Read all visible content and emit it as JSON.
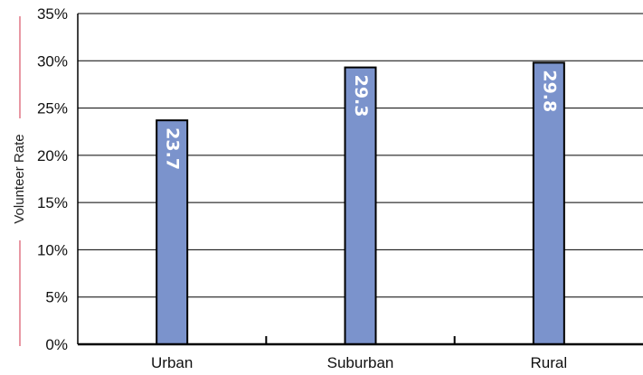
{
  "chart_data": {
    "type": "bar",
    "categories": [
      "Urban",
      "Suburban",
      "Rural"
    ],
    "values": [
      23.7,
      29.3,
      29.8
    ],
    "data_labels": [
      "23.7",
      "29.3",
      "29.8"
    ],
    "title": "",
    "xlabel": "",
    "ylabel": "Volunteer Rate",
    "ylim": [
      0,
      35
    ],
    "y_ticks": [
      "0%",
      "5%",
      "10%",
      "15%",
      "20%",
      "25%",
      "30%",
      "35%"
    ],
    "grid": "horizontal",
    "legend": "none"
  },
  "colors": {
    "bar_fill": "#7b93cc",
    "bar_stroke": "#000000",
    "grid": "#000000",
    "ylabel_rule": "#d0304a"
  }
}
